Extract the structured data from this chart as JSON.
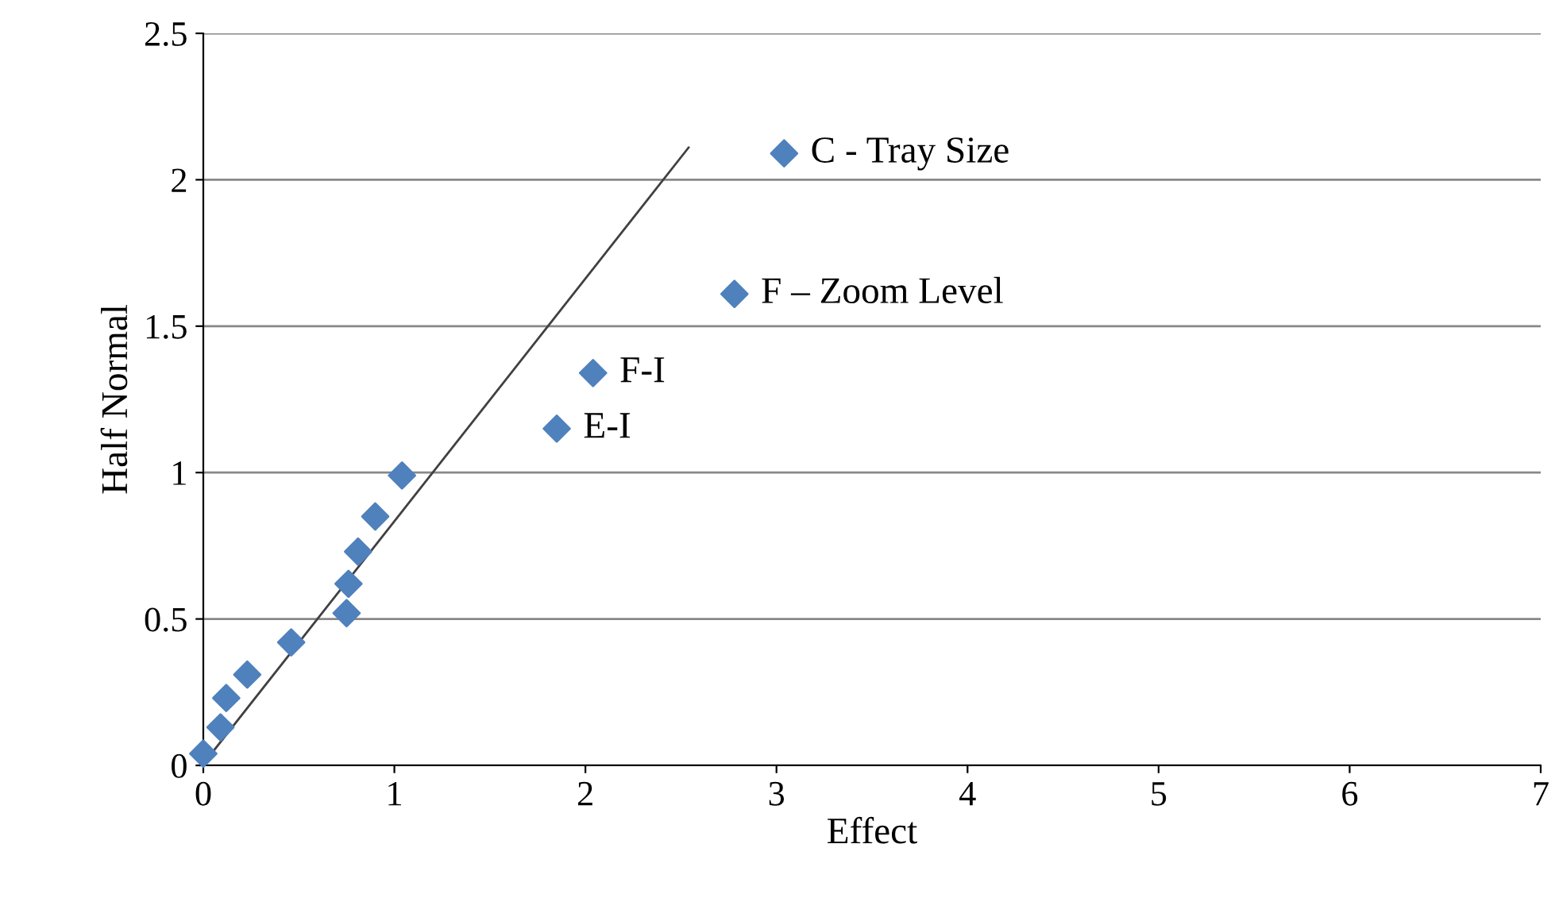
{
  "chart_data": {
    "type": "scatter",
    "xlabel": "Effect",
    "ylabel": "Half Normal",
    "series": [
      {
        "color": "#4f81bd",
        "marker": "diamond",
        "x": [
          0,
          0.09,
          0.12,
          0.23,
          0.46,
          0.75,
          0.76,
          0.81,
          0.9,
          1.04,
          1.85,
          2.04,
          2.78,
          3.04
        ],
        "values": [
          0.04,
          0.13,
          0.23,
          0.31,
          0.42,
          0.52,
          0.62,
          0.73,
          0.85,
          0.99,
          1.15,
          1.34,
          1.61,
          2.09
        ]
      },
      {
        "type": "line",
        "color": "#404040",
        "marker": "none",
        "x": [
          0.03,
          2.54
        ],
        "values": [
          0.03,
          2.11
        ]
      }
    ],
    "annotations": [
      {
        "text": "C - Tray Size",
        "x": 3.04,
        "y": 2.09
      },
      {
        "text": "F – Zoom Level",
        "x": 2.78,
        "y": 1.61
      },
      {
        "text": "F-I",
        "x": 2.04,
        "y": 1.34
      },
      {
        "text": "E-I",
        "x": 1.85,
        "y": 1.15
      }
    ],
    "xlim": [
      0,
      7
    ],
    "xticks": [
      0,
      1,
      2,
      3,
      4,
      5,
      6,
      7
    ],
    "ylim": [
      0,
      2.5
    ],
    "yticks": [
      0,
      0.5,
      1,
      1.5,
      2,
      2.5
    ],
    "grid": "y",
    "legend": false
  }
}
